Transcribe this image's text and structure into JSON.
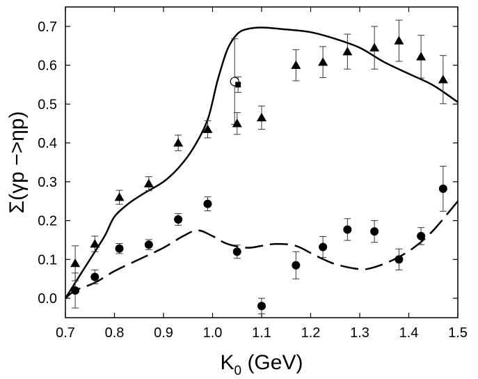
{
  "chart_data": {
    "type": "scatter",
    "title": "",
    "xlabel": "K",
    "xlabel_sub": "0",
    "xlabel_unit": " (GeV)",
    "ylabel": "Σ(γp −>ηp)",
    "xlim": [
      0.7,
      1.5
    ],
    "ylim": [
      -0.05,
      0.75
    ],
    "x_ticks": [
      0.7,
      0.8,
      0.9,
      1.0,
      1.1,
      1.2,
      1.3,
      1.4,
      1.5
    ],
    "x_tick_labels": [
      "0.7",
      "0.8",
      "0.9",
      "1.0",
      "1.1",
      "1.2",
      "1.3",
      "1.4",
      "1.5"
    ],
    "y_ticks": [
      0.0,
      0.1,
      0.2,
      0.3,
      0.4,
      0.5,
      0.6,
      0.7
    ],
    "y_tick_labels": [
      "0.0",
      "0.1",
      "0.2",
      "0.3",
      "0.4",
      "0.5",
      "0.6",
      "0.7"
    ],
    "series": [
      {
        "name": "triangles",
        "marker": "triangle",
        "points": [
          {
            "x": 0.72,
            "y": 0.09,
            "err": 0.045
          },
          {
            "x": 0.76,
            "y": 0.14,
            "err": 0.02
          },
          {
            "x": 0.81,
            "y": 0.26,
            "err": 0.018
          },
          {
            "x": 0.87,
            "y": 0.295,
            "err": 0.018
          },
          {
            "x": 0.93,
            "y": 0.4,
            "err": 0.02
          },
          {
            "x": 0.99,
            "y": 0.435,
            "err": 0.022
          },
          {
            "x": 1.05,
            "y": 0.45,
            "err": 0.028
          },
          {
            "x": 1.1,
            "y": 0.465,
            "err": 0.03
          },
          {
            "x": 1.17,
            "y": 0.6,
            "err": 0.04
          },
          {
            "x": 1.225,
            "y": 0.608,
            "err": 0.04
          },
          {
            "x": 1.275,
            "y": 0.635,
            "err": 0.045
          },
          {
            "x": 1.33,
            "y": 0.645,
            "err": 0.055
          },
          {
            "x": 1.38,
            "y": 0.663,
            "err": 0.053
          },
          {
            "x": 1.425,
            "y": 0.622,
            "err": 0.055
          },
          {
            "x": 1.47,
            "y": 0.563,
            "err": 0.062
          }
        ]
      },
      {
        "name": "circles",
        "marker": "circle",
        "points": [
          {
            "x": 0.72,
            "y": 0.02,
            "err": 0.045
          },
          {
            "x": 0.76,
            "y": 0.055,
            "err": 0.018
          },
          {
            "x": 0.81,
            "y": 0.128,
            "err": 0.013
          },
          {
            "x": 0.87,
            "y": 0.138,
            "err": 0.013
          },
          {
            "x": 0.93,
            "y": 0.203,
            "err": 0.015
          },
          {
            "x": 0.99,
            "y": 0.243,
            "err": 0.018
          },
          {
            "x": 1.05,
            "y": 0.12,
            "err": 0.017
          },
          {
            "x": 1.1,
            "y": -0.02,
            "err": 0.02
          },
          {
            "x": 1.17,
            "y": 0.085,
            "err": 0.035
          },
          {
            "x": 1.225,
            "y": 0.132,
            "err": 0.027
          },
          {
            "x": 1.275,
            "y": 0.177,
            "err": 0.028
          },
          {
            "x": 1.33,
            "y": 0.172,
            "err": 0.028
          },
          {
            "x": 1.38,
            "y": 0.1,
            "err": 0.027
          },
          {
            "x": 1.425,
            "y": 0.16,
            "err": 0.022
          },
          {
            "x": 1.47,
            "y": 0.282,
            "err": 0.058
          }
        ]
      },
      {
        "name": "open-circle",
        "marker": "open-circle",
        "points": [
          {
            "x": 1.045,
            "y": 0.558,
            "err": 0.11
          }
        ]
      },
      {
        "name": "filled-square",
        "marker": "square",
        "points": [
          {
            "x": 1.052,
            "y": 0.55,
            "err": 0.02
          }
        ]
      }
    ],
    "curves": [
      {
        "name": "solid-curve",
        "style": "solid",
        "points": [
          [
            0.7,
            0.0
          ],
          [
            0.72,
            0.04
          ],
          [
            0.75,
            0.1
          ],
          [
            0.78,
            0.16
          ],
          [
            0.8,
            0.21
          ],
          [
            0.83,
            0.245
          ],
          [
            0.86,
            0.27
          ],
          [
            0.9,
            0.3
          ],
          [
            0.93,
            0.335
          ],
          [
            0.96,
            0.385
          ],
          [
            0.99,
            0.46
          ],
          [
            1.01,
            0.56
          ],
          [
            1.03,
            0.64
          ],
          [
            1.05,
            0.68
          ],
          [
            1.07,
            0.693
          ],
          [
            1.1,
            0.697
          ],
          [
            1.15,
            0.692
          ],
          [
            1.2,
            0.685
          ],
          [
            1.25,
            0.668
          ],
          [
            1.3,
            0.645
          ],
          [
            1.35,
            0.608
          ],
          [
            1.4,
            0.578
          ],
          [
            1.45,
            0.548
          ],
          [
            1.5,
            0.505
          ]
        ]
      },
      {
        "name": "dashed-curve",
        "style": "dashed",
        "points": [
          [
            0.7,
            0.0
          ],
          [
            0.72,
            0.02
          ],
          [
            0.76,
            0.04
          ],
          [
            0.8,
            0.07
          ],
          [
            0.85,
            0.1
          ],
          [
            0.9,
            0.13
          ],
          [
            0.94,
            0.16
          ],
          [
            0.97,
            0.175
          ],
          [
            1.0,
            0.16
          ],
          [
            1.03,
            0.14
          ],
          [
            1.07,
            0.13
          ],
          [
            1.1,
            0.135
          ],
          [
            1.13,
            0.14
          ],
          [
            1.17,
            0.135
          ],
          [
            1.21,
            0.11
          ],
          [
            1.25,
            0.088
          ],
          [
            1.3,
            0.075
          ],
          [
            1.33,
            0.08
          ],
          [
            1.37,
            0.1
          ],
          [
            1.41,
            0.13
          ],
          [
            1.45,
            0.175
          ],
          [
            1.5,
            0.25
          ]
        ]
      }
    ]
  }
}
